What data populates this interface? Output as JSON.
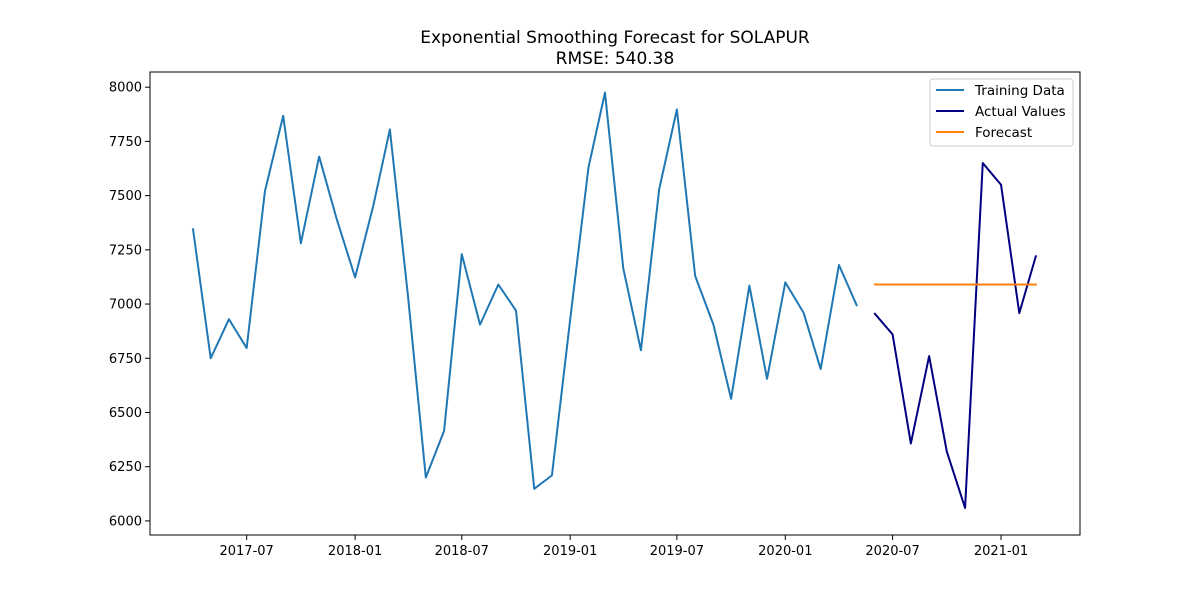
{
  "chart_data": {
    "type": "line",
    "title": "Exponential Smoothing Forecast for SOLAPUR",
    "subtitle": "RMSE: 540.38",
    "xlabel": "",
    "ylabel": "",
    "x_ticks": [
      "2017-07",
      "2018-01",
      "2018-07",
      "2019-01",
      "2019-07",
      "2020-01",
      "2020-07",
      "2021-01"
    ],
    "y_ticks": [
      6000,
      6250,
      6500,
      6750,
      7000,
      7250,
      7500,
      7750,
      8000
    ],
    "xlim": [
      "2017-01-18",
      "2021-05-15"
    ],
    "ylim": [
      5935,
      8070
    ],
    "grid": false,
    "legend_position": "top-right",
    "series": [
      {
        "name": "Training Data",
        "color": "#1f77b4",
        "x": [
          "2017-04-01",
          "2017-05-01",
          "2017-06-01",
          "2017-07-01",
          "2017-08-01",
          "2017-09-01",
          "2017-10-01",
          "2017-11-01",
          "2017-12-01",
          "2018-01-01",
          "2018-02-01",
          "2018-03-01",
          "2018-04-01",
          "2018-05-01",
          "2018-06-01",
          "2018-07-01",
          "2018-08-01",
          "2018-09-01",
          "2018-10-01",
          "2018-11-01",
          "2018-12-01",
          "2019-01-01",
          "2019-02-01",
          "2019-03-01",
          "2019-04-01",
          "2019-05-01",
          "2019-06-01",
          "2019-07-01",
          "2019-08-01",
          "2019-09-01",
          "2019-10-01",
          "2019-11-01",
          "2019-12-01",
          "2020-01-01",
          "2020-02-01",
          "2020-03-01",
          "2020-04-01",
          "2020-05-01"
        ],
        "values": [
          7345,
          6750,
          6930,
          6797,
          7520,
          7868,
          7280,
          7680,
          7390,
          7123,
          7455,
          7805,
          7030,
          6200,
          6415,
          7230,
          6905,
          7090,
          6970,
          6148,
          6210,
          6930,
          7630,
          7975,
          7165,
          6787,
          7530,
          7897,
          7130,
          6905,
          6563,
          7085,
          6655,
          7100,
          6960,
          6700,
          7180,
          6995
        ]
      },
      {
        "name": "Actual Values",
        "color": "#000080",
        "x": [
          "2020-06-01",
          "2020-07-01",
          "2020-08-01",
          "2020-09-01",
          "2020-10-01",
          "2020-11-01",
          "2020-12-01",
          "2021-01-01",
          "2021-02-01",
          "2021-03-01"
        ],
        "values": [
          6955,
          6860,
          6357,
          6760,
          6320,
          6060,
          7650,
          7550,
          6958,
          7220
        ]
      },
      {
        "name": "Forecast",
        "color": "#ff7f0e",
        "x": [
          "2020-06-01",
          "2021-03-01"
        ],
        "values": [
          7090,
          7090
        ]
      }
    ]
  }
}
